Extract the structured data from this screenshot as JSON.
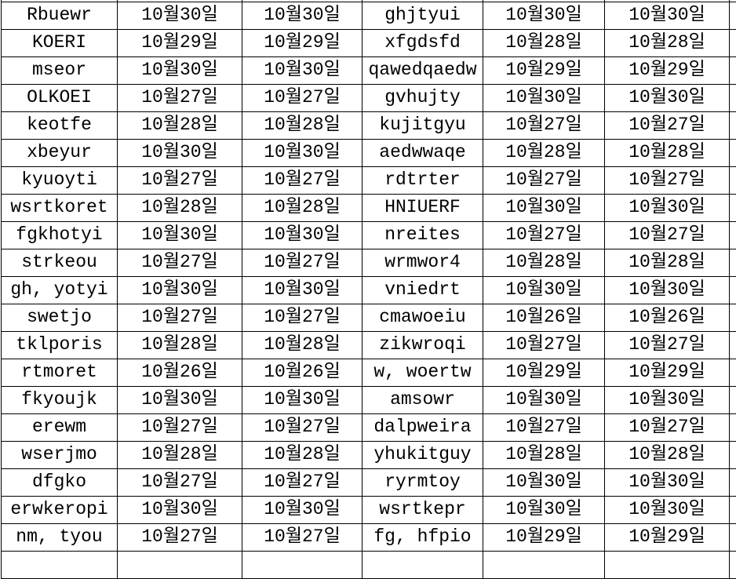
{
  "colors": {
    "background": "#ffffff",
    "grid_line": "#000000",
    "text": "#000000"
  },
  "table": {
    "description": "borderless-header spreadsheet grid, 6 visible columns, cropped on all sides",
    "rows": [
      [
        "Rbuewr",
        "10월30일",
        "10월30일",
        "ghjtyui",
        "10월30일",
        "10월30일"
      ],
      [
        "KOERI",
        "10월29일",
        "10월29일",
        "xfgdsfd",
        "10월28일",
        "10월28일"
      ],
      [
        "mseor",
        "10월30일",
        "10월30일",
        "qawedqaedw",
        "10월29일",
        "10월29일"
      ],
      [
        "OLKOEI",
        "10월27일",
        "10월27일",
        "gvhujty",
        "10월30일",
        "10월30일"
      ],
      [
        "keotfe",
        "10월28일",
        "10월28일",
        "kujitgyu",
        "10월27일",
        "10월27일"
      ],
      [
        "xbeyur",
        "10월30일",
        "10월30일",
        "aedwwaqe",
        "10월28일",
        "10월28일"
      ],
      [
        "kyuoyti",
        "10월27일",
        "10월27일",
        "rdtrter",
        "10월27일",
        "10월27일"
      ],
      [
        "wsrtkoret",
        "10월28일",
        "10월28일",
        "HNIUERF",
        "10월30일",
        "10월30일"
      ],
      [
        "fgkhotyi",
        "10월30일",
        "10월30일",
        "nreites",
        "10월27일",
        "10월27일"
      ],
      [
        "strkeou",
        "10월27일",
        "10월27일",
        "wrmwor4",
        "10월28일",
        "10월28일"
      ],
      [
        "gh, yotyi",
        "10월30일",
        "10월30일",
        "vniedrt",
        "10월30일",
        "10월30일"
      ],
      [
        "swetjo",
        "10월27일",
        "10월27일",
        "cmawoeiu",
        "10월26일",
        "10월26일"
      ],
      [
        "tklporis",
        "10월28일",
        "10월28일",
        "zikwroqi",
        "10월27일",
        "10월27일"
      ],
      [
        "rtmoret",
        "10월26일",
        "10월26일",
        "w, woertw",
        "10월29일",
        "10월29일"
      ],
      [
        "fkyoujk",
        "10월30일",
        "10월30일",
        "amsowr",
        "10월30일",
        "10월30일"
      ],
      [
        "erewm",
        "10월27일",
        "10월27일",
        "dalpweira",
        "10월27일",
        "10월27일"
      ],
      [
        "wserjmo",
        "10월28일",
        "10월28일",
        "yhukitguy",
        "10월28일",
        "10월28일"
      ],
      [
        "dfgko",
        "10월27일",
        "10월27일",
        "ryrmtoy",
        "10월30일",
        "10월30일"
      ],
      [
        "erwkeropi",
        "10월30일",
        "10월30일",
        "wsrtkepr",
        "10월30일",
        "10월30일"
      ],
      [
        "nm, tyou",
        "10월27일",
        "10월27일",
        "fg, hfpio",
        "10월29일",
        "10월29일"
      ]
    ]
  }
}
